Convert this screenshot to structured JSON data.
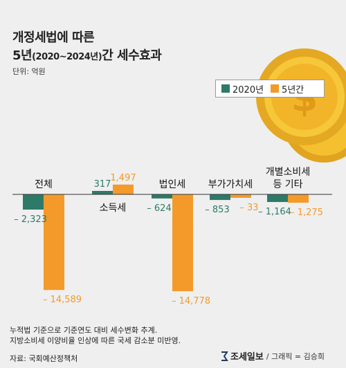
{
  "title_line1": "개정세법에 따른",
  "title_line2_a": "5년",
  "title_line2_b": "(2020~2024년)",
  "title_line2_c": "간 세수효과",
  "unit": "단위: 억원",
  "colors": {
    "green": "#2e7a68",
    "orange": "#f39a2b",
    "coin": "#f5c030"
  },
  "chart_data": {
    "type": "bar",
    "categories": [
      "전체",
      "소득세",
      "법인세",
      "부가가치세",
      "개별소비세 등 기타"
    ],
    "category_lines": [
      [
        "전체"
      ],
      [
        "소득세"
      ],
      [
        "법인세"
      ],
      [
        "부가가치세"
      ],
      [
        "개별소비세",
        "등 기타"
      ]
    ],
    "series": [
      {
        "name": "2020년",
        "values": [
          -2323,
          317,
          -624,
          -853,
          -1164
        ],
        "labels": [
          "– 2,323",
          "317",
          "– 624",
          "– 853",
          "– 1,164"
        ]
      },
      {
        "name": "5년간",
        "values": [
          -14589,
          1497,
          -14778,
          -33,
          -1275
        ],
        "labels": [
          "– 14,589",
          "1,497",
          "– 14,778",
          "– 33",
          "– 1,275"
        ]
      }
    ]
  },
  "footnote_1": "누적법 기준으로 기준연도 대비 세수변화 추계.",
  "footnote_2": "지방소비세 이양비율 인상에 따른 국세 감소분 미반영.",
  "source": "자료: 국회예산정책처",
  "brand_name": "조세일보",
  "credit": "/ 그래픽 = 김승희"
}
